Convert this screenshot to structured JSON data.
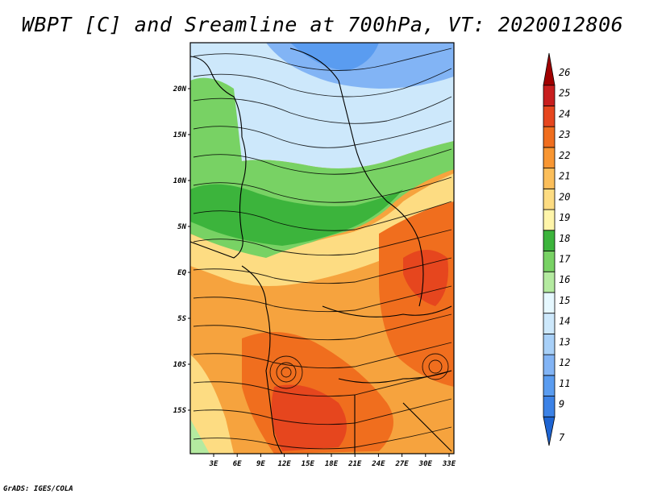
{
  "title": "WBPT [C] and Sreamline at 700hPa, VT: 2020012806",
  "credit": "GrADS: IGES/COLA",
  "lon_labels": [
    "3E",
    "6E",
    "9E",
    "12E",
    "15E",
    "18E",
    "21E",
    "24E",
    "27E",
    "30E",
    "33E"
  ],
  "lat_labels": [
    "20N",
    "15N",
    "10N",
    "5N",
    "EQ",
    "5S",
    "10S",
    "15S"
  ],
  "colorbar": {
    "levels": [
      "7",
      "9",
      "11",
      "12",
      "13",
      "14",
      "15",
      "16",
      "17",
      "18",
      "19",
      "20",
      "21",
      "22",
      "23",
      "24",
      "25",
      "26"
    ],
    "colors": [
      "#1e64d2",
      "#3c82e6",
      "#5a9cf0",
      "#82b4f5",
      "#a8d0f8",
      "#cde8fb",
      "#e6f8ff",
      "#b4eaa0",
      "#78d264",
      "#3cb43c",
      "#fff5aa",
      "#fddc82",
      "#fbbe5a",
      "#f89632",
      "#f06e1e",
      "#e6461e",
      "#c81e1e",
      "#a00000"
    ]
  },
  "map": {
    "lon_range": [
      0,
      35
    ],
    "lat_range": [
      -20,
      24
    ],
    "field": "WBPT",
    "units": "C",
    "level": "700hPa",
    "valid_time": "2020012806"
  }
}
